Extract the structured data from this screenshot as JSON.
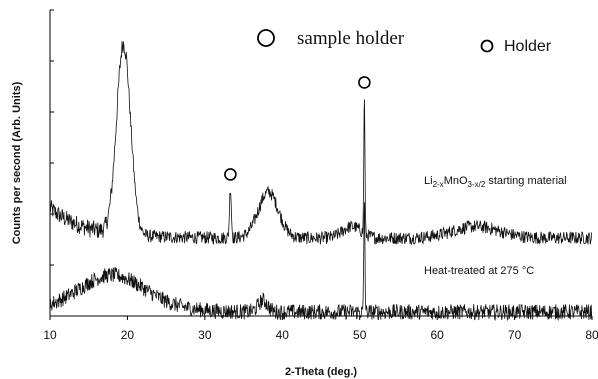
{
  "chart_data": {
    "type": "line",
    "xlabel": "2-Theta (deg.)",
    "ylabel": "Counts per second (Arb. Units)",
    "xlim": [
      10,
      80
    ],
    "xticks": [
      "10",
      "20",
      "30",
      "40",
      "50",
      "60",
      "70",
      "80"
    ],
    "y_tick_labels": "none",
    "grid": false,
    "legend": [
      {
        "marker": "open-circle-large",
        "label": "sample holder"
      },
      {
        "marker": "open-circle-small",
        "label": "Holder"
      }
    ],
    "series": [
      {
        "annotation": {
          "base": "Li",
          "sub1": "2-x",
          "mid": "MnO",
          "sub2": "3-x/2",
          "tail": "starting material"
        },
        "peaks": [
          {
            "x": 19.5,
            "height": 0.83,
            "width": 0.9
          },
          {
            "x": 33.3,
            "height": 0.22,
            "width": 0.12,
            "marked_holder": true
          },
          {
            "x": 38.2,
            "height": 0.2,
            "width": 1.3
          },
          {
            "x": 49.0,
            "height": 0.05,
            "width": 1.2
          },
          {
            "x": 50.6,
            "height": 0.62,
            "width": 0.07,
            "marked_holder": true
          },
          {
            "x": 65.0,
            "height": 0.05,
            "width": 3.0
          }
        ]
      },
      {
        "annotation": {
          "text": "Heat-treated at 275 °C"
        },
        "peaks": [
          {
            "x": 18.0,
            "height": 0.12,
            "width": 4.0
          },
          {
            "x": 37.5,
            "height": 0.05,
            "width": 0.6
          },
          {
            "x": 50.6,
            "height": 0.5,
            "width": 0.07,
            "marked_holder": true
          }
        ]
      }
    ]
  }
}
